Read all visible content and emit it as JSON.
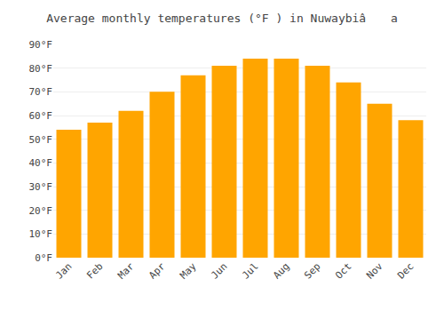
{
  "chart_data": {
    "type": "bar",
    "title": "Average monthly temperatures (°F ) in Nuwaybiâ a",
    "categories": [
      "Jan",
      "Feb",
      "Mar",
      "Apr",
      "May",
      "Jun",
      "Jul",
      "Aug",
      "Sep",
      "Oct",
      "Nov",
      "Dec"
    ],
    "values": [
      54,
      57,
      62,
      70,
      77,
      81,
      84,
      84,
      81,
      74,
      65,
      58
    ],
    "color": "#FFA500",
    "ylim": [
      0,
      90
    ],
    "yticks": [
      {
        "value": 0,
        "label": "0°F"
      },
      {
        "value": 10,
        "label": "10°F"
      },
      {
        "value": 20,
        "label": "20°F"
      },
      {
        "value": 30,
        "label": "30°F"
      },
      {
        "value": 40,
        "label": "40°F"
      },
      {
        "value": 50,
        "label": "50°F"
      },
      {
        "value": 60,
        "label": "60°F"
      },
      {
        "value": 70,
        "label": "70°F"
      },
      {
        "value": 80,
        "label": "80°F"
      },
      {
        "value": 90,
        "label": "90°F"
      }
    ],
    "grid": true
  }
}
